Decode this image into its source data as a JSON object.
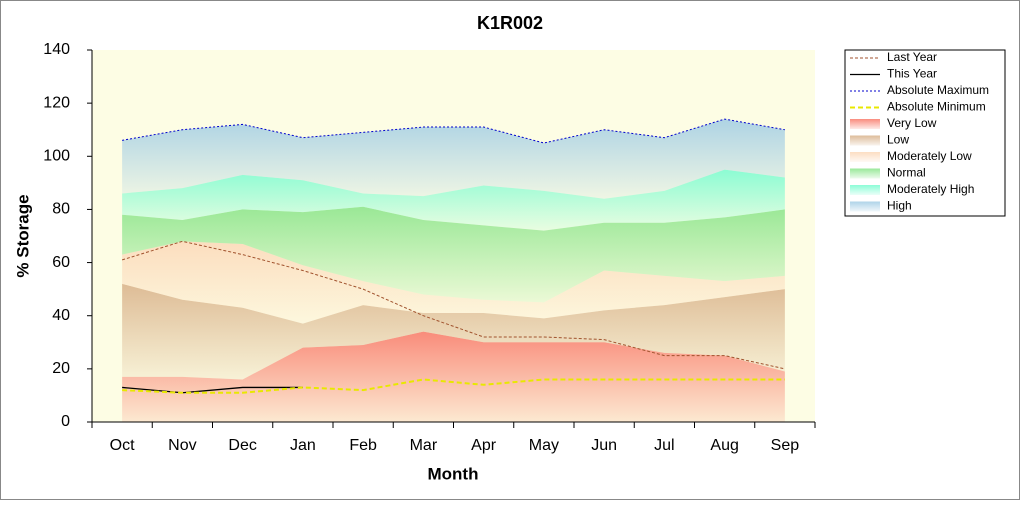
{
  "chart_data": {
    "type": "area",
    "title": "K1R002",
    "x_label": "Month",
    "y_label": "% Storage",
    "categories": [
      "Oct",
      "Nov",
      "Dec",
      "Jan",
      "Feb",
      "Mar",
      "Apr",
      "May",
      "Jun",
      "Jul",
      "Aug",
      "Sep"
    ],
    "ylim": [
      0,
      140
    ],
    "yticks": [
      0,
      20,
      40,
      60,
      80,
      100,
      120,
      140
    ],
    "series": [
      {
        "name": "Last Year",
        "kind": "line",
        "color": "#a0522d",
        "dash": "3,2",
        "width": 1,
        "values": [
          61,
          68,
          63,
          57,
          50,
          40,
          32,
          32,
          31,
          25,
          25,
          20
        ]
      },
      {
        "name": "This Year",
        "kind": "line",
        "color": "#000000",
        "dash": "none",
        "width": 1.3,
        "values": [
          13,
          11,
          13,
          13,
          null,
          null,
          null,
          null,
          null,
          null,
          null,
          null
        ]
      },
      {
        "name": "Absolute Maximum",
        "kind": "line",
        "color": "#0000cc",
        "dash": "2,2",
        "width": 1,
        "values": [
          106,
          110,
          112,
          107,
          109,
          111,
          111,
          105,
          110,
          107,
          114,
          110
        ]
      },
      {
        "name": "Absolute Minimum",
        "kind": "line",
        "color": "#e8e800",
        "dash": "5,3",
        "width": 2,
        "values": [
          12,
          11,
          11,
          13,
          12,
          16,
          14,
          16,
          16,
          16,
          16,
          16
        ]
      },
      {
        "name": "Very Low",
        "kind": "area",
        "color": "#f87868",
        "values": [
          17,
          17,
          16,
          28,
          29,
          34,
          30,
          30,
          30,
          26,
          25,
          19
        ]
      },
      {
        "name": "Low",
        "kind": "area",
        "color": "#d8b088",
        "values": [
          35,
          29,
          27,
          9,
          15,
          7,
          11,
          9,
          12,
          18,
          22,
          31
        ]
      },
      {
        "name": "Moderately Low",
        "kind": "area",
        "color": "#fcd8b8",
        "values": [
          11,
          22,
          24,
          22,
          9,
          7,
          5,
          6,
          15,
          11,
          6,
          5
        ]
      },
      {
        "name": "Normal",
        "kind": "area",
        "color": "#88e488",
        "values": [
          15,
          8,
          13,
          20,
          28,
          28,
          28,
          27,
          18,
          20,
          24,
          25
        ]
      },
      {
        "name": "Moderately High",
        "kind": "area",
        "color": "#78fcd0",
        "values": [
          8,
          12,
          13,
          12,
          5,
          9,
          15,
          15,
          9,
          12,
          18,
          12
        ]
      },
      {
        "name": "High",
        "kind": "area",
        "color": "#a0cce4",
        "values": [
          20,
          22,
          19,
          16,
          23,
          26,
          22,
          18,
          26,
          20,
          19,
          18
        ]
      }
    ]
  }
}
